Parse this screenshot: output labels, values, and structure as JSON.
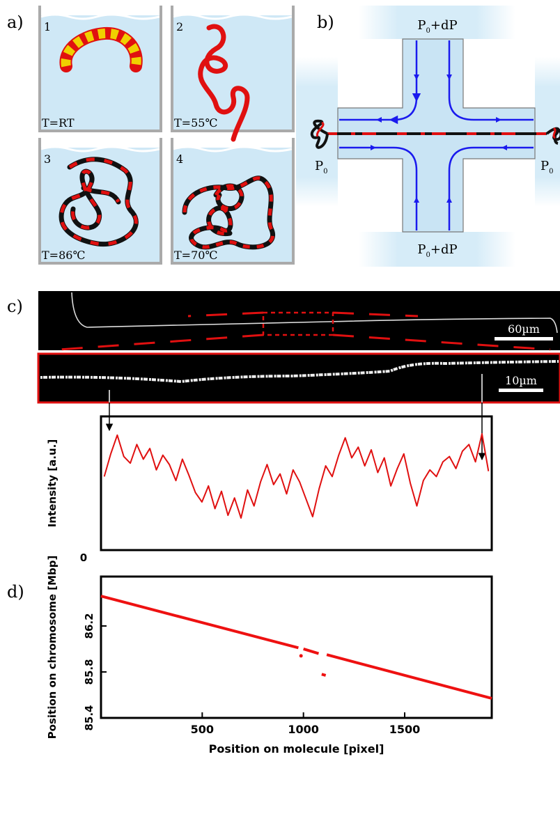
{
  "panel_labels": [
    "a)",
    "b)",
    "c)",
    "d)"
  ],
  "panel_a": {
    "boxes": [
      {
        "number": "1",
        "condition": "T=RT"
      },
      {
        "number": "2",
        "condition": "T=55℃"
      },
      {
        "number": "3",
        "condition": "T=86℃"
      },
      {
        "number": "4",
        "condition": "T=70℃"
      }
    ]
  },
  "panel_b": {
    "top_label": [
      "P",
      "0",
      "+dP"
    ],
    "bottom_label": [
      "P",
      "0",
      "+dP"
    ],
    "left_label": [
      "P",
      "0"
    ],
    "right_label": [
      "P",
      "0"
    ]
  },
  "panel_c": {
    "scale_bars": [
      "60µm",
      "10µm"
    ]
  },
  "chart_data": [
    {
      "type": "line",
      "y_label": "Intensity [a.u.]",
      "ylim": [
        0,
        10
      ],
      "yticks": [
        0
      ],
      "color": "#e01010",
      "values": [
        5.5,
        7.2,
        8.6,
        7.0,
        6.5,
        7.9,
        6.8,
        7.6,
        6.0,
        7.1,
        6.4,
        5.2,
        6.8,
        5.6,
        4.3,
        3.6,
        4.8,
        3.1,
        4.4,
        2.6,
        3.9,
        2.4,
        4.5,
        3.3,
        5.1,
        6.4,
        4.9,
        5.7,
        4.2,
        6.0,
        5.1,
        3.8,
        2.5,
        4.6,
        6.3,
        5.5,
        7.1,
        8.4,
        6.9,
        7.7,
        6.3,
        7.5,
        5.8,
        6.9,
        4.8,
        6.1,
        7.2,
        5.0,
        3.3,
        5.2,
        6.0,
        5.5,
        6.6,
        7.0,
        6.1,
        7.4,
        7.9,
        6.6,
        8.7,
        5.9
      ]
    },
    {
      "type": "line",
      "x_label": "Position on molecule [pixel]",
      "y_label": "Position on chromosome [Mbp]",
      "x": [
        0,
        975,
        988,
        1000,
        1075,
        1090,
        1110,
        1115,
        1930
      ],
      "xlim": [
        0,
        1930
      ],
      "ylim": [
        85.4,
        86.63
      ],
      "xticks": [
        500,
        1000,
        1500
      ],
      "yticks": [
        85.4,
        85.8,
        86.2
      ],
      "series": [
        {
          "color": "#ee1111",
          "values": [
            86.46,
            86.01,
            null,
            86.0,
            85.96,
            null,
            null,
            85.95,
            85.57
          ]
        },
        {
          "color": "#ee1111",
          "values": [
            null,
            null,
            85.94,
            null,
            null,
            85.78,
            85.77,
            null,
            null
          ]
        }
      ]
    }
  ]
}
